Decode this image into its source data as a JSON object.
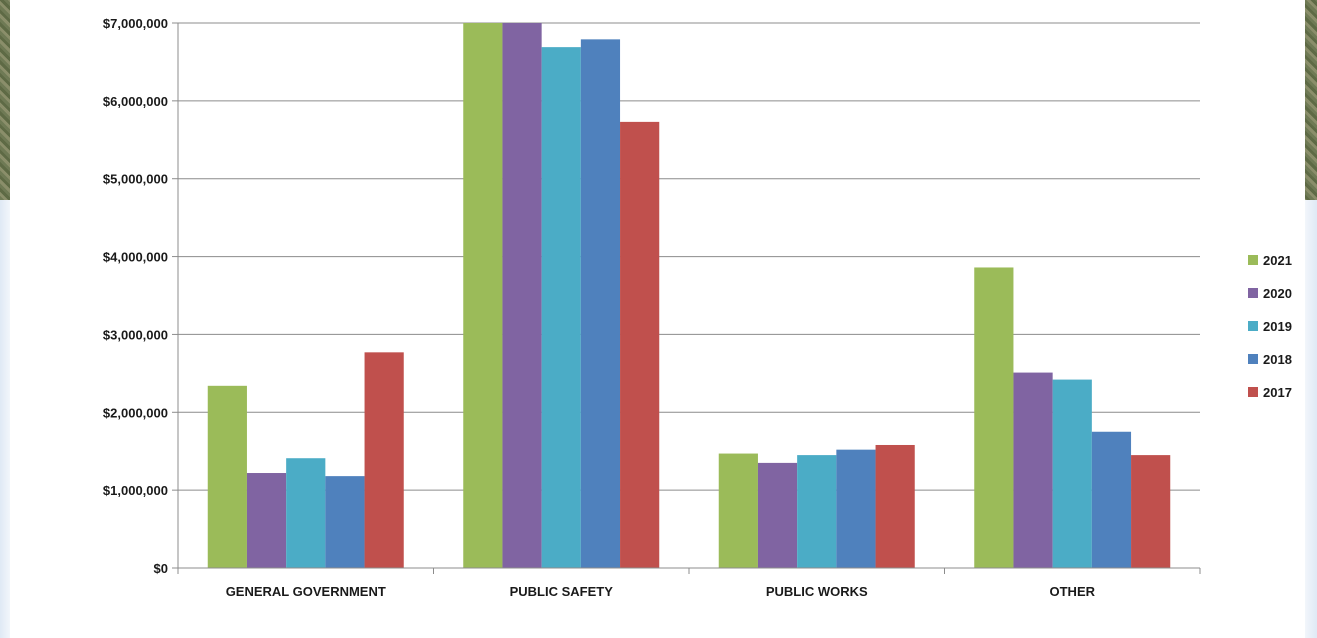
{
  "chart_data": {
    "type": "bar",
    "title": "",
    "xlabel": "",
    "ylabel": "",
    "ylim": [
      0,
      7000000
    ],
    "yticks": [
      0,
      1000000,
      2000000,
      3000000,
      4000000,
      5000000,
      6000000,
      7000000
    ],
    "ytick_labels": [
      "$0",
      "$1,000,000",
      "$2,000,000",
      "$3,000,000",
      "$4,000,000",
      "$5,000,000",
      "$6,000,000",
      "$7,000,000"
    ],
    "grid": true,
    "legend_position": "right",
    "categories": [
      "GENERAL GOVERNMENT",
      "PUBLIC SAFETY",
      "PUBLIC WORKS",
      "OTHER"
    ],
    "series": [
      {
        "name": "2021",
        "color": "#9bbb59",
        "values": [
          2340000,
          7000000,
          1470000,
          3860000
        ]
      },
      {
        "name": "2020",
        "color": "#8064a2",
        "values": [
          1220000,
          7000000,
          1350000,
          2510000
        ]
      },
      {
        "name": "2019",
        "color": "#4bacc6",
        "values": [
          1410000,
          6690000,
          1450000,
          2420000
        ]
      },
      {
        "name": "2018",
        "color": "#4f81bd",
        "values": [
          1180000,
          6790000,
          1520000,
          1750000
        ]
      },
      {
        "name": "2017",
        "color": "#c0504d",
        "values": [
          2770000,
          5730000,
          1580000,
          1450000
        ]
      }
    ]
  }
}
